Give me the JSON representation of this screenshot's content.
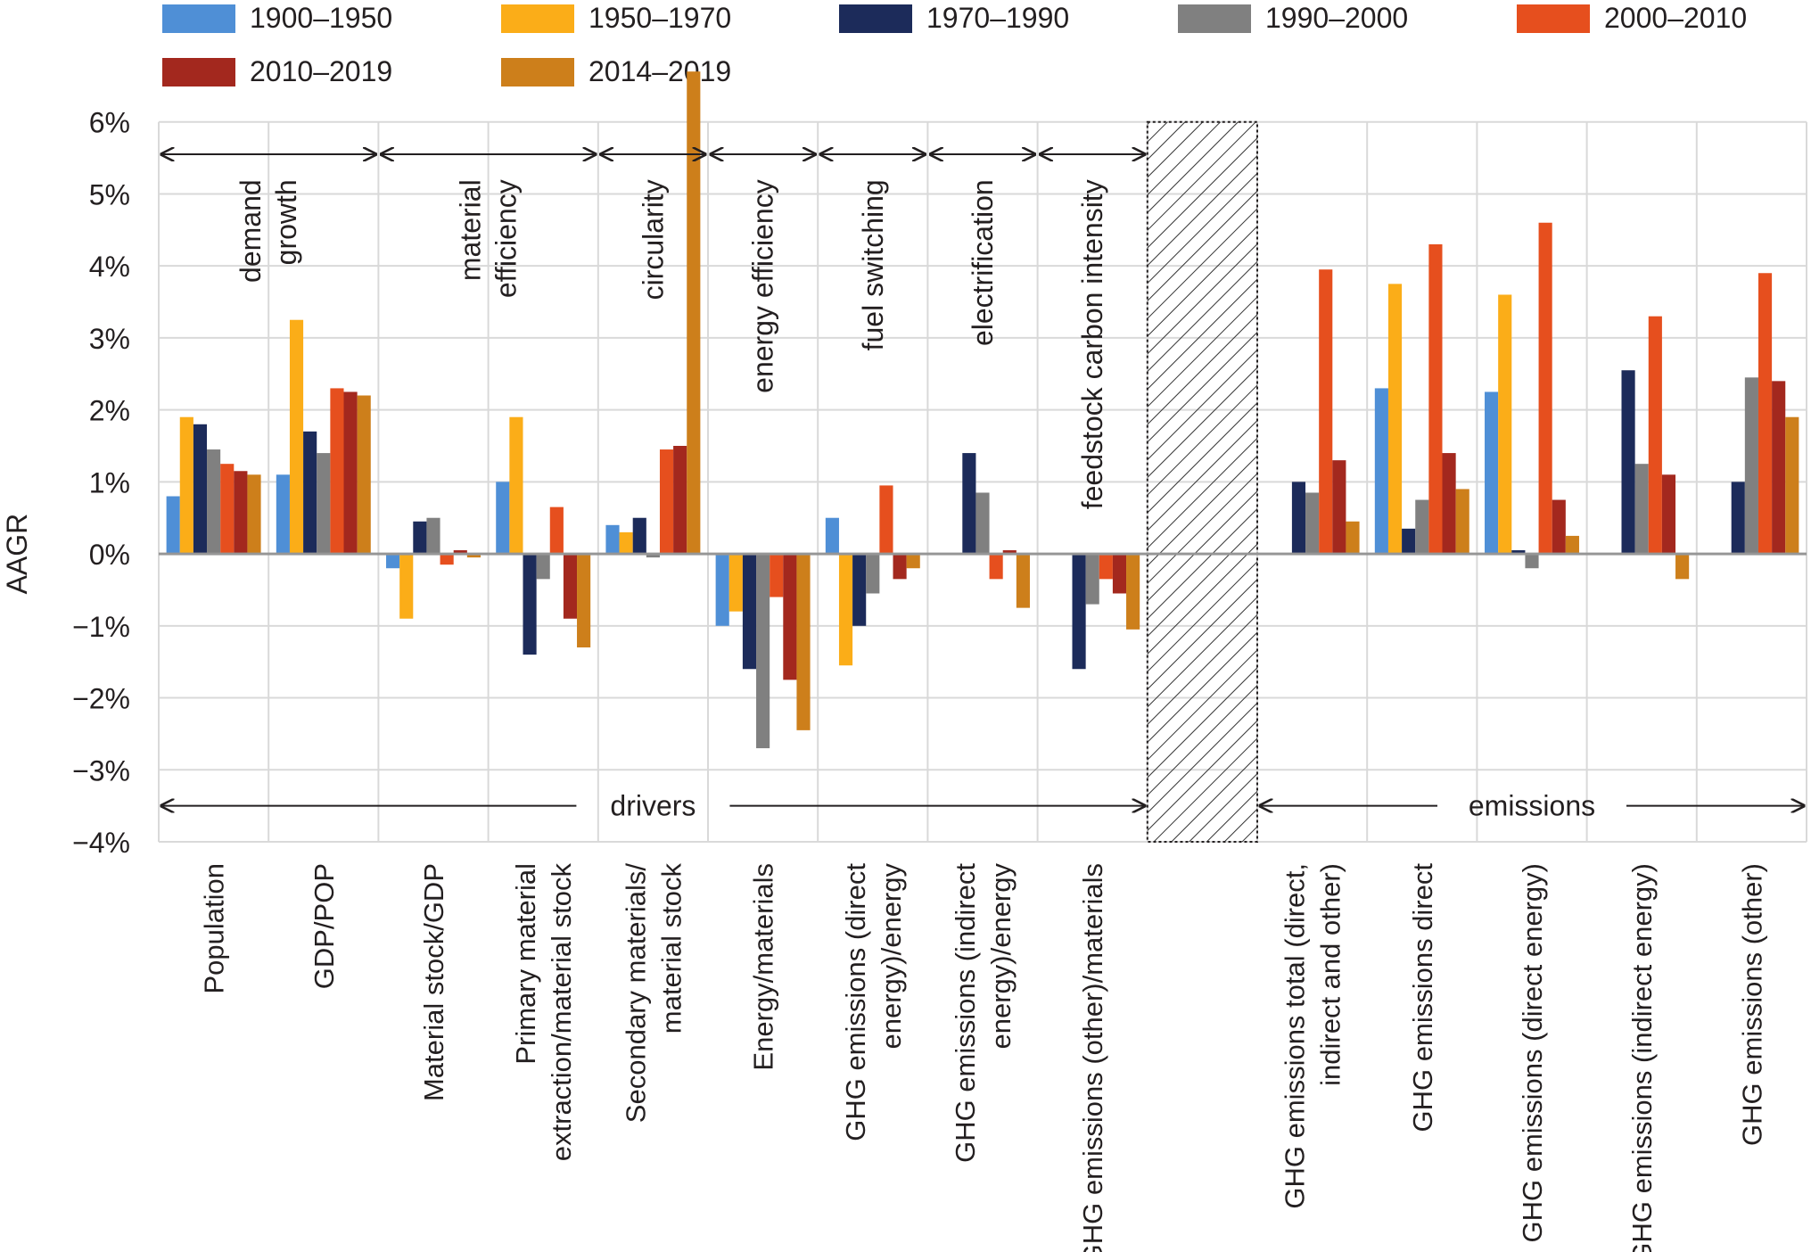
{
  "chart_data": {
    "type": "bar",
    "title": "",
    "ylabel": "AAGR",
    "xlabel": "",
    "ylim": [
      -4,
      7
    ],
    "yticks": [
      6,
      5,
      4,
      3,
      2,
      1,
      0,
      -1,
      -2,
      -3,
      -4
    ],
    "ytick_labels": [
      "6%",
      "5%",
      "4%",
      "3%",
      "2%",
      "1%",
      "0%",
      "−1%",
      "−2%",
      "−3%",
      "−4%"
    ],
    "grid": true,
    "legend_position": "top",
    "categories": [
      "Population",
      "GDP/POP",
      "Material stock/GDP",
      "Primary material extraction/material stock",
      "Secondary materials/ material stock",
      "Energy/materials",
      "GHG emissions (direct energy)/energy",
      "GHG emissions (indirect energy)/energy",
      "GHG emissions (other)/materials",
      "",
      "GHG emissions total (direct, indirect and other)",
      "GHG emissions direct",
      "GHG emissions (direct energy)",
      "GHG emissions (indirect energy)",
      "GHG emissions (other)"
    ],
    "category_label_lines": [
      [
        "Population"
      ],
      [
        "GDP/POP"
      ],
      [
        "Material stock/GDP"
      ],
      [
        "Primary material",
        "extraction/material stock"
      ],
      [
        "Secondary materials/",
        "material stock"
      ],
      [
        "Energy/materials"
      ],
      [
        "GHG emissions (direct",
        "energy)/energy"
      ],
      [
        "GHG emissions (indirect",
        "energy)/energy"
      ],
      [
        "GHG emissions (other)/materials"
      ],
      [],
      [
        "GHG emissions total (direct,",
        "indirect and other)"
      ],
      [
        "GHG emissions direct"
      ],
      [
        "GHG emissions (direct energy)"
      ],
      [
        "GHG emissions (indirect energy)"
      ],
      [
        "GHG emissions (other)"
      ]
    ],
    "series": [
      {
        "name": "1900–1950",
        "color": "#4f8fd6",
        "values": [
          0.8,
          1.1,
          -0.2,
          1.0,
          0.4,
          -1.0,
          0.5,
          null,
          null,
          null,
          null,
          2.3,
          2.25,
          null,
          null
        ]
      },
      {
        "name": "1950–1970",
        "color": "#fbad18",
        "values": [
          1.9,
          3.25,
          -0.9,
          1.9,
          0.3,
          -0.8,
          -1.55,
          null,
          null,
          null,
          null,
          3.75,
          3.6,
          null,
          null
        ]
      },
      {
        "name": "1970–1990",
        "color": "#1c2b5a",
        "values": [
          1.8,
          1.7,
          0.45,
          -1.4,
          0.5,
          -1.6,
          -1.0,
          1.4,
          -1.6,
          null,
          1.0,
          0.35,
          0.05,
          2.55,
          1.0
        ]
      },
      {
        "name": "1990–2000",
        "color": "#808080",
        "values": [
          1.45,
          1.4,
          0.5,
          -0.35,
          -0.05,
          -2.7,
          -0.55,
          0.85,
          -0.7,
          null,
          0.85,
          0.75,
          -0.2,
          1.25,
          2.45
        ]
      },
      {
        "name": "2000–2010",
        "color": "#e64f1e",
        "values": [
          1.25,
          2.3,
          -0.15,
          0.65,
          1.45,
          -0.6,
          0.95,
          -0.35,
          -0.35,
          null,
          3.95,
          4.3,
          4.6,
          3.3,
          3.9
        ]
      },
      {
        "name": "2010–2019",
        "color": "#a3281e",
        "values": [
          1.15,
          2.25,
          0.05,
          -0.9,
          1.5,
          -1.75,
          -0.35,
          0.05,
          -0.55,
          null,
          1.3,
          1.4,
          0.75,
          1.1,
          2.4
        ]
      },
      {
        "name": "2014–2019",
        "color": "#cd7f1b",
        "values": [
          1.1,
          2.2,
          -0.05,
          -1.3,
          6.7,
          -2.45,
          -0.2,
          -0.75,
          -1.05,
          null,
          0.45,
          0.9,
          0.25,
          -0.35,
          1.9
        ]
      }
    ],
    "group_annotations": [
      {
        "label_lines": [
          "demand",
          "growth"
        ],
        "from": 0,
        "to": 1
      },
      {
        "label_lines": [
          "material",
          "efficiency"
        ],
        "from": 2,
        "to": 3
      },
      {
        "label_lines": [
          "circularity"
        ],
        "from": 4,
        "to": 4
      },
      {
        "label_lines": [
          "energy efficiency"
        ],
        "from": 5,
        "to": 5
      },
      {
        "label_lines": [
          "fuel switching"
        ],
        "from": 6,
        "to": 6
      },
      {
        "label_lines": [
          "electrification"
        ],
        "from": 7,
        "to": 7
      },
      {
        "label_lines": [
          "feedstock carbon intensity"
        ],
        "from": 8,
        "to": 8
      }
    ],
    "section_annotations": [
      {
        "label": "drivers",
        "from": 0,
        "to": 8
      },
      {
        "label": "emissions",
        "from": 10,
        "to": 14
      }
    ],
    "hatched_category": 9
  }
}
